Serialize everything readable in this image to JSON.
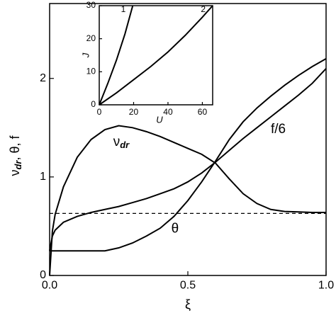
{
  "chart_data": [
    {
      "type": "line",
      "xlabel": "ξ",
      "ylabel": {
        "text": "ν",
        "sub": "dr",
        "rest": ", θ, f"
      },
      "x": [
        0,
        0.01,
        0.02,
        0.05,
        0.1,
        0.15,
        0.2,
        0.25,
        0.3,
        0.35,
        0.4,
        0.45,
        0.5,
        0.55,
        0.6,
        0.65,
        0.7,
        0.75,
        0.8,
        0.85,
        0.9,
        0.95,
        1.0
      ],
      "series": [
        {
          "color": "#000000",
          "values": [
            0,
            0.45,
            0.62,
            0.9,
            1.2,
            1.38,
            1.48,
            1.52,
            1.5,
            1.46,
            1.41,
            1.35,
            1.29,
            1.23,
            1.14,
            0.98,
            0.83,
            0.73,
            0.67,
            0.65,
            0.645,
            0.64,
            0.64
          ]
        },
        {
          "color": "#000000",
          "values": [
            0.25,
            0.25,
            0.25,
            0.25,
            0.25,
            0.25,
            0.25,
            0.28,
            0.33,
            0.4,
            0.48,
            0.6,
            0.76,
            0.95,
            1.16,
            1.38,
            1.56,
            1.7,
            1.82,
            1.93,
            2.03,
            2.12,
            2.2
          ]
        },
        {
          "color": "#000000",
          "values": [
            0.25,
            0.4,
            0.46,
            0.54,
            0.6,
            0.64,
            0.67,
            0.7,
            0.74,
            0.78,
            0.83,
            0.88,
            0.95,
            1.04,
            1.15,
            1.27,
            1.39,
            1.5,
            1.61,
            1.72,
            1.83,
            1.95,
            2.1
          ]
        }
      ],
      "reference_line": {
        "value": 0.63,
        "style": "dashed"
      },
      "annotations": [
        {
          "text": "ν",
          "sub": "dr",
          "x": 0.23,
          "y": 1.35
        },
        {
          "text": "θ",
          "x": 0.44,
          "y": 0.47
        },
        {
          "text": "f/6",
          "x": 0.8,
          "y": 1.48
        }
      ],
      "xlim": [
        0,
        1.0
      ],
      "ylim": [
        0,
        2.76
      ],
      "xticks": [
        {
          "value": 0,
          "label": "0.0"
        },
        {
          "value": 0.5,
          "label": "0.5"
        },
        {
          "value": 1.0,
          "label": "1.0"
        }
      ],
      "yticks": [
        0,
        1,
        2
      ]
    },
    {
      "type": "line",
      "xlabel": "U",
      "ylabel": "J",
      "series": [
        {
          "name": "1",
          "color": "#000000",
          "x": [
            0,
            5,
            10,
            15,
            19.5
          ],
          "values": [
            0,
            6.5,
            13.5,
            21.5,
            30
          ]
        },
        {
          "name": "2",
          "color": "#000000",
          "x": [
            0,
            10,
            20,
            30,
            40,
            50,
            60,
            66
          ],
          "values": [
            0,
            3.6,
            7.6,
            11.6,
            16,
            21,
            26.5,
            30
          ]
        }
      ],
      "xlim": [
        0,
        66
      ],
      "ylim": [
        0,
        30
      ],
      "xticks": [
        0,
        20,
        40,
        60
      ],
      "yticks": [
        0,
        10,
        20,
        30
      ]
    }
  ]
}
